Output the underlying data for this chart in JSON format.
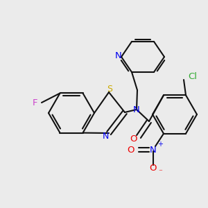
{
  "background_color": "#EBEBEB",
  "bond_color": "#000000",
  "bond_width": 1.5,
  "fig_w": 3.0,
  "fig_h": 3.0,
  "dpi": 100,
  "xlim": [
    0,
    300
  ],
  "ylim": [
    0,
    300
  ],
  "colors": {
    "F": "#CC44CC",
    "S": "#CCAA00",
    "N_blue": "#0000EE",
    "Cl": "#33AA33",
    "O": "#EE0000",
    "bond": "#111111"
  }
}
